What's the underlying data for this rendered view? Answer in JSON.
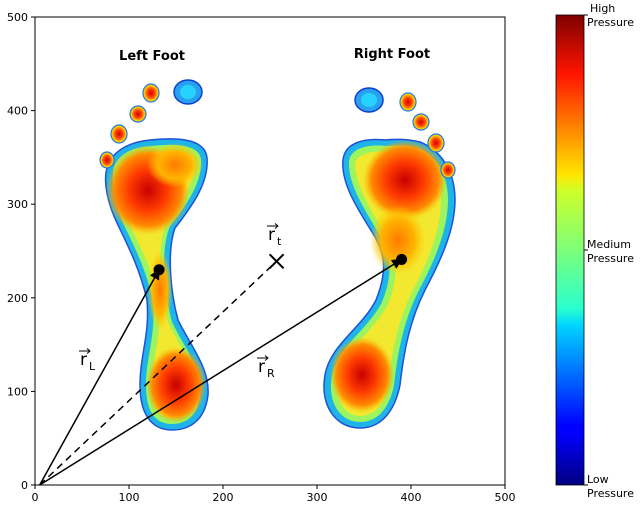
{
  "chart_data": {
    "type": "heatmap",
    "xlim": [
      0,
      500
    ],
    "ylim": [
      0,
      500
    ],
    "x_ticks": [
      0,
      100,
      200,
      300,
      400,
      500
    ],
    "y_ticks": [
      0,
      100,
      200,
      300,
      400,
      500
    ],
    "x_tick_labels": [
      "0",
      "100",
      "200",
      "300",
      "400",
      "500"
    ],
    "y_tick_labels": [
      "0",
      "100",
      "200",
      "300",
      "400",
      "500"
    ],
    "labels": {
      "left_foot": "Left Foot",
      "right_foot": "Right Foot"
    },
    "points": [
      {
        "name": "left_cop",
        "x": 132,
        "y": 230,
        "marker": "dot"
      },
      {
        "name": "right_cop",
        "x": 390,
        "y": 241,
        "marker": "dot"
      },
      {
        "name": "target",
        "x": 257,
        "y": 239,
        "marker": "x"
      }
    ],
    "vectors": [
      {
        "name": "r_L",
        "label_main": "r",
        "label_sub": "L",
        "from": [
          5,
          0
        ],
        "to": [
          132,
          230
        ],
        "style": "solid"
      },
      {
        "name": "r_t",
        "label_main": "r",
        "label_sub": "t",
        "from": [
          5,
          0
        ],
        "to": [
          257,
          239
        ],
        "style": "dashed"
      },
      {
        "name": "r_R",
        "label_main": "r",
        "label_sub": "R",
        "from": [
          5,
          0
        ],
        "to": [
          390,
          241
        ],
        "style": "solid"
      }
    ],
    "colorbar": {
      "colormap": "jet",
      "top_label_1": "High",
      "top_label_2": "Pressure",
      "mid_label_1": "Medium",
      "mid_label_2": "Pressure",
      "bottom_label_1": "Low",
      "bottom_label_2": "Pressure"
    }
  }
}
